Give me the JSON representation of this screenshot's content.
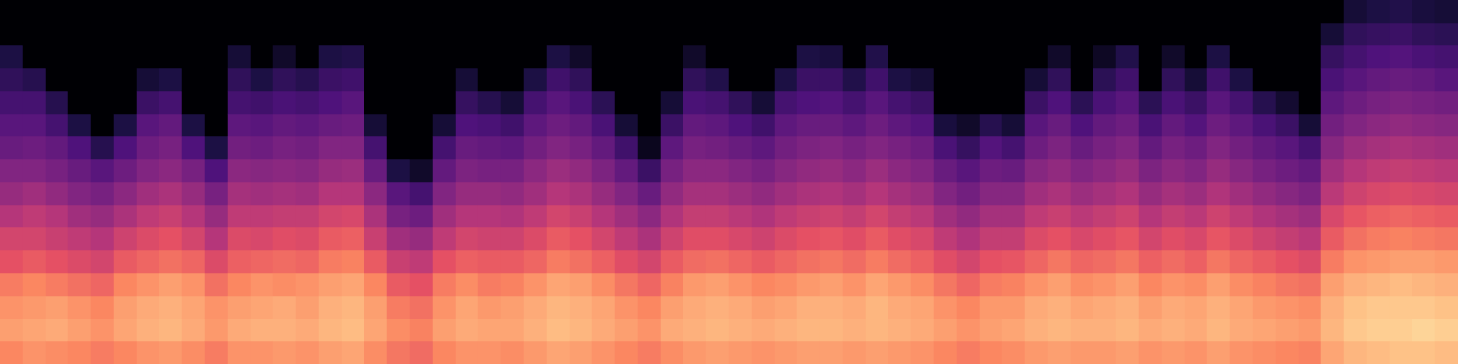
{
  "chart_data": {
    "type": "heatmap",
    "tick_labels": false,
    "zlim": [
      -80,
      0
    ],
    "frames": [
      [
        -20,
        -16,
        -18,
        -22,
        -30,
        -34,
        -40,
        -46,
        -50,
        -55,
        -58,
        -62,
        -66,
        -70,
        -80,
        -80
      ],
      [
        -18,
        -15,
        -17,
        -20,
        -28,
        -34,
        -38,
        -44,
        -50,
        -54,
        -58,
        -62,
        -68,
        -80,
        -80,
        -80
      ],
      [
        -19,
        -14,
        -16,
        -22,
        -30,
        -36,
        -40,
        -47,
        -52,
        -56,
        -62,
        -68,
        -80,
        -80,
        -80,
        -80
      ],
      [
        -20,
        -16,
        -18,
        -24,
        -32,
        -38,
        -44,
        -50,
        -55,
        -60,
        -70,
        -80,
        -80,
        -80,
        -80,
        -80
      ],
      [
        -22,
        -18,
        -20,
        -26,
        -34,
        -40,
        -46,
        -52,
        -58,
        -68,
        -80,
        -80,
        -80,
        -80,
        -80,
        -80
      ],
      [
        -20,
        -15,
        -16,
        -20,
        -28,
        -35,
        -42,
        -48,
        -54,
        -60,
        -70,
        -80,
        -80,
        -80,
        -80,
        -80
      ],
      [
        -18,
        -13,
        -14,
        -18,
        -26,
        -32,
        -38,
        -44,
        -50,
        -54,
        -58,
        -64,
        -72,
        -80,
        -80,
        -80
      ],
      [
        -17,
        -12,
        -13,
        -16,
        -24,
        -30,
        -36,
        -42,
        -48,
        -52,
        -56,
        -62,
        -70,
        -80,
        -80,
        -80
      ],
      [
        -19,
        -14,
        -15,
        -18,
        -26,
        -34,
        -40,
        -46,
        -52,
        -60,
        -70,
        -80,
        -80,
        -80,
        -80,
        -80
      ],
      [
        -22,
        -17,
        -18,
        -24,
        -32,
        -40,
        -46,
        -52,
        -60,
        -70,
        -80,
        -80,
        -80,
        -80,
        -80,
        -80
      ],
      [
        -18,
        -14,
        -16,
        -20,
        -27,
        -32,
        -38,
        -43,
        -48,
        -53,
        -57,
        -62,
        -66,
        -72,
        -80,
        -80
      ],
      [
        -18,
        -13,
        -15,
        -18,
        -26,
        -33,
        -38,
        -44,
        -49,
        -54,
        -58,
        -63,
        -70,
        -80,
        -80,
        -80
      ],
      [
        -17,
        -13,
        -14,
        -19,
        -25,
        -31,
        -37,
        -43,
        -48,
        -52,
        -56,
        -61,
        -66,
        -74,
        -80,
        -80
      ],
      [
        -18,
        -14,
        -16,
        -18,
        -26,
        -32,
        -37,
        -44,
        -49,
        -53,
        -57,
        -62,
        -68,
        -80,
        -80,
        -80
      ],
      [
        -16,
        -12,
        -13,
        -16,
        -22,
        -28,
        -34,
        -40,
        -46,
        -50,
        -55,
        -60,
        -64,
        -70,
        -80,
        -80
      ],
      [
        -15,
        -11,
        -12,
        -15,
        -21,
        -27,
        -33,
        -40,
        -45,
        -50,
        -54,
        -58,
        -63,
        -69,
        -80,
        -80
      ],
      [
        -19,
        -15,
        -16,
        -20,
        -28,
        -36,
        -42,
        -48,
        -55,
        -62,
        -72,
        -80,
        -80,
        -80,
        -80,
        -80
      ],
      [
        -23,
        -19,
        -22,
        -28,
        -36,
        -44,
        -52,
        -58,
        -70,
        -80,
        -80,
        -80,
        -80,
        -80,
        -80,
        -80
      ],
      [
        -25,
        -21,
        -24,
        -30,
        -38,
        -46,
        -54,
        -62,
        -74,
        -80,
        -80,
        -80,
        -80,
        -80,
        -80,
        -80
      ],
      [
        -20,
        -16,
        -18,
        -22,
        -30,
        -38,
        -44,
        -50,
        -56,
        -62,
        -72,
        -80,
        -80,
        -80,
        -80,
        -80
      ],
      [
        -18,
        -14,
        -15,
        -19,
        -27,
        -34,
        -40,
        -46,
        -51,
        -55,
        -60,
        -65,
        -72,
        -80,
        -80,
        -80
      ],
      [
        -18,
        -15,
        -17,
        -22,
        -28,
        -35,
        -40,
        -46,
        -52,
        -56,
        -61,
        -68,
        -80,
        -80,
        -80,
        -80
      ],
      [
        -19,
        -15,
        -16,
        -21,
        -28,
        -35,
        -41,
        -47,
        -52,
        -57,
        -63,
        -72,
        -80,
        -80,
        -80,
        -80
      ],
      [
        -17,
        -13,
        -14,
        -18,
        -26,
        -32,
        -38,
        -44,
        -48,
        -53,
        -57,
        -62,
        -70,
        -80,
        -80,
        -80
      ],
      [
        -15,
        -11,
        -12,
        -15,
        -22,
        -28,
        -34,
        -40,
        -45,
        -50,
        -54,
        -58,
        -63,
        -70,
        -80,
        -80
      ],
      [
        -16,
        -12,
        -13,
        -16,
        -24,
        -30,
        -36,
        -42,
        -47,
        -52,
        -56,
        -61,
        -66,
        -74,
        -80,
        -80
      ],
      [
        -18,
        -14,
        -15,
        -19,
        -27,
        -34,
        -40,
        -46,
        -51,
        -56,
        -61,
        -67,
        -80,
        -80,
        -80,
        -80
      ],
      [
        -20,
        -16,
        -18,
        -23,
        -31,
        -38,
        -44,
        -50,
        -56,
        -63,
        -72,
        -80,
        -80,
        -80,
        -80,
        -80
      ],
      [
        -22,
        -18,
        -20,
        -26,
        -34,
        -42,
        -48,
        -55,
        -64,
        -76,
        -80,
        -80,
        -80,
        -80,
        -80,
        -80
      ],
      [
        -19,
        -14,
        -16,
        -21,
        -28,
        -35,
        -41,
        -47,
        -52,
        -57,
        -64,
        -72,
        -80,
        -80,
        -80,
        -80
      ],
      [
        -17,
        -13,
        -14,
        -17,
        -25,
        -31,
        -37,
        -43,
        -48,
        -52,
        -56,
        -61,
        -66,
        -74,
        -80,
        -80
      ],
      [
        -16,
        -12,
        -13,
        -16,
        -24,
        -31,
        -37,
        -43,
        -48,
        -53,
        -57,
        -62,
        -69,
        -80,
        -80,
        -80
      ],
      [
        -17,
        -13,
        -14,
        -18,
        -26,
        -33,
        -39,
        -45,
        -50,
        -55,
        -60,
        -66,
        -80,
        -80,
        -80,
        -80
      ],
      [
        -18,
        -14,
        -16,
        -20,
        -28,
        -35,
        -41,
        -47,
        -52,
        -57,
        -63,
        -72,
        -80,
        -80,
        -80,
        -80
      ],
      [
        -17,
        -13,
        -15,
        -19,
        -26,
        -32,
        -38,
        -44,
        -49,
        -53,
        -57,
        -62,
        -70,
        -80,
        -80,
        -80
      ],
      [
        -16,
        -12,
        -13,
        -17,
        -24,
        -30,
        -36,
        -42,
        -47,
        -51,
        -55,
        -60,
        -64,
        -70,
        -80,
        -80
      ],
      [
        -16,
        -12,
        -13,
        -16,
        -23,
        -29,
        -35,
        -41,
        -46,
        -50,
        -55,
        -59,
        -64,
        -71,
        -80,
        -80
      ],
      [
        -17,
        -13,
        -14,
        -18,
        -25,
        -31,
        -37,
        -43,
        -48,
        -52,
        -57,
        -62,
        -69,
        -80,
        -80,
        -80
      ],
      [
        -16,
        -12,
        -12,
        -15,
        -22,
        -28,
        -34,
        -40,
        -45,
        -50,
        -54,
        -58,
        -63,
        -69,
        -80,
        -80
      ],
      [
        -17,
        -13,
        -14,
        -17,
        -25,
        -31,
        -37,
        -43,
        -48,
        -52,
        -57,
        -62,
        -70,
        -80,
        -80,
        -80
      ],
      [
        -18,
        -14,
        -15,
        -19,
        -27,
        -33,
        -39,
        -45,
        -50,
        -54,
        -59,
        -64,
        -72,
        -80,
        -80,
        -80
      ],
      [
        -20,
        -16,
        -18,
        -23,
        -31,
        -38,
        -44,
        -50,
        -55,
        -61,
        -71,
        -80,
        -80,
        -80,
        -80,
        -80
      ],
      [
        -22,
        -18,
        -20,
        -26,
        -34,
        -41,
        -47,
        -53,
        -58,
        -65,
        -74,
        -80,
        -80,
        -80,
        -80,
        -80
      ],
      [
        -20,
        -16,
        -17,
        -22,
        -30,
        -37,
        -43,
        -49,
        -54,
        -59,
        -68,
        -80,
        -80,
        -80,
        -80,
        -80
      ],
      [
        -19,
        -15,
        -17,
        -21,
        -29,
        -37,
        -43,
        -49,
        -55,
        -62,
        -72,
        -80,
        -80,
        -80,
        -80,
        -80
      ],
      [
        -17,
        -13,
        -14,
        -18,
        -26,
        -32,
        -38,
        -44,
        -49,
        -54,
        -58,
        -64,
        -72,
        -80,
        -80,
        -80
      ],
      [
        -16,
        -12,
        -13,
        -16,
        -23,
        -30,
        -36,
        -42,
        -47,
        -51,
        -55,
        -60,
        -66,
        -74,
        -80,
        -80
      ],
      [
        -17,
        -13,
        -15,
        -19,
        -26,
        -33,
        -39,
        -45,
        -50,
        -55,
        -60,
        -67,
        -80,
        -80,
        -80,
        -80
      ],
      [
        -17,
        -13,
        -14,
        -18,
        -25,
        -31,
        -37,
        -43,
        -48,
        -52,
        -56,
        -61,
        -67,
        -75,
        -80,
        -80
      ],
      [
        -16,
        -12,
        -13,
        -16,
        -23,
        -29,
        -35,
        -41,
        -46,
        -50,
        -54,
        -58,
        -63,
        -69,
        -80,
        -80
      ],
      [
        -18,
        -14,
        -16,
        -20,
        -27,
        -34,
        -40,
        -46,
        -51,
        -56,
        -61,
        -67,
        -80,
        -80,
        -80,
        -80
      ],
      [
        -17,
        -13,
        -14,
        -18,
        -25,
        -31,
        -37,
        -43,
        -48,
        -52,
        -56,
        -61,
        -66,
        -74,
        -80,
        -80
      ],
      [
        -18,
        -14,
        -15,
        -19,
        -27,
        -33,
        -39,
        -45,
        -50,
        -54,
        -59,
        -64,
        -72,
        -80,
        -80,
        -80
      ],
      [
        -16,
        -12,
        -13,
        -16,
        -23,
        -29,
        -35,
        -41,
        -46,
        -50,
        -54,
        -58,
        -63,
        -70,
        -80,
        -80
      ],
      [
        -18,
        -14,
        -15,
        -19,
        -26,
        -32,
        -38,
        -44,
        -49,
        -53,
        -57,
        -62,
        -70,
        -80,
        -80,
        -80
      ],
      [
        -19,
        -15,
        -17,
        -21,
        -28,
        -35,
        -41,
        -47,
        -52,
        -56,
        -61,
        -68,
        -80,
        -80,
        -80,
        -80
      ],
      [
        -20,
        -16,
        -18,
        -23,
        -30,
        -37,
        -43,
        -49,
        -54,
        -58,
        -64,
        -73,
        -80,
        -80,
        -80,
        -80
      ],
      [
        -21,
        -17,
        -19,
        -24,
        -32,
        -39,
        -45,
        -51,
        -56,
        -62,
        -72,
        -80,
        -80,
        -80,
        -80,
        -80
      ],
      [
        -15,
        -12,
        -13,
        -16,
        -22,
        -28,
        -33,
        -39,
        -44,
        -49,
        -53,
        -57,
        -61,
        -65,
        -72,
        -80
      ],
      [
        -12,
        -9,
        -10,
        -13,
        -18,
        -24,
        -29,
        -35,
        -40,
        -45,
        -50,
        -54,
        -58,
        -62,
        -66,
        -72
      ],
      [
        -11,
        -8,
        -9,
        -12,
        -17,
        -22,
        -27,
        -33,
        -38,
        -43,
        -48,
        -52,
        -56,
        -60,
        -65,
        -70
      ],
      [
        -10,
        -8,
        -9,
        -11,
        -16,
        -21,
        -26,
        -32,
        -37,
        -42,
        -47,
        -51,
        -55,
        -59,
        -64,
        -69
      ],
      [
        -10,
        -7,
        -9,
        -12,
        -16,
        -22,
        -27,
        -33,
        -38,
        -43,
        -48,
        -52,
        -56,
        -61,
        -66,
        -71
      ],
      [
        -11,
        -8,
        -10,
        -13,
        -17,
        -23,
        -28,
        -34,
        -39,
        -44,
        -49,
        -53,
        -58,
        -62,
        -67,
        -72
      ]
    ]
  }
}
